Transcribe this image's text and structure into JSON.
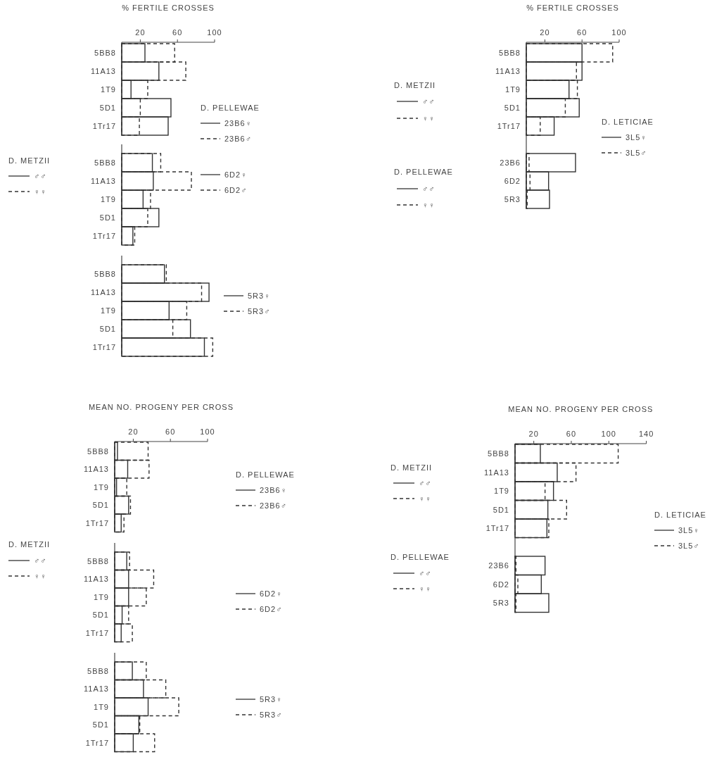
{
  "chart_data": [
    {
      "type": "bar",
      "orientation": "horizontal",
      "xlabel": "% FERTILE CROSSES",
      "categories": [
        "5BB8",
        "11A13",
        "1T9",
        "5D1",
        "1Tr17"
      ],
      "xlim": [
        0,
        100
      ],
      "xticks": [
        20,
        60,
        100
      ],
      "legend": "right",
      "legend_title": "D. PELLEWAE",
      "series": [
        {
          "name": "23B6♀",
          "color": "#333333",
          "line_style": "solid",
          "values": [
            25,
            40,
            10,
            53,
            50
          ]
        },
        {
          "name": "23B6♂",
          "color": "#333333",
          "line_style": "dashed",
          "values": [
            57,
            69,
            28,
            20,
            19
          ]
        }
      ]
    },
    {
      "type": "bar",
      "orientation": "horizontal",
      "categories": [
        "5BB8",
        "11A13",
        "1T9",
        "5D1",
        "1Tr17"
      ],
      "xlim": [
        0,
        100
      ],
      "tick_labels": "y",
      "legend": "right",
      "annotations": [
        "D. METZII",
        "♂♂",
        "♀♀"
      ],
      "series": [
        {
          "name": "6D2♀",
          "color": "#333333",
          "line_style": "solid",
          "values": [
            33,
            34,
            23,
            40,
            12
          ]
        },
        {
          "name": "6D2♂",
          "color": "#333333",
          "line_style": "dashed",
          "values": [
            42,
            75,
            31,
            28,
            14
          ]
        }
      ]
    },
    {
      "type": "bar",
      "orientation": "horizontal",
      "categories": [
        "5BB8",
        "11A13",
        "1T9",
        "5D1",
        "1Tr17"
      ],
      "xlim": [
        0,
        100
      ],
      "tick_labels": "y",
      "legend": "right",
      "series": [
        {
          "name": "5R3♀",
          "color": "#333333",
          "line_style": "solid",
          "values": [
            46,
            94,
            51,
            74,
            89
          ]
        },
        {
          "name": "5R3♂",
          "color": "#333333",
          "line_style": "dashed",
          "values": [
            48,
            86,
            70,
            55,
            98
          ]
        }
      ]
    },
    {
      "type": "bar",
      "orientation": "horizontal",
      "xlabel": "% FERTILE CROSSES",
      "categories": [
        "5BB8",
        "11A13",
        "1T9",
        "5D1",
        "1Tr17",
        null,
        "23B6",
        "6D2",
        "5R3"
      ],
      "xlim": [
        0,
        100
      ],
      "xticks": [
        20,
        60,
        100
      ],
      "legend": "right",
      "legend_title": "D. LETICIAE",
      "annotations": [
        "D. METZII",
        "♂♂",
        "♀♀",
        "D. PELLEWAE",
        "♂♂",
        "♀♀"
      ],
      "series": [
        {
          "name": "3L5♀",
          "color": "#333333",
          "line_style": "solid",
          "values": [
            60,
            60,
            46,
            57,
            30,
            null,
            53,
            24,
            25
          ]
        },
        {
          "name": "3L5♂",
          "color": "#333333",
          "line_style": "dashed",
          "values": [
            93,
            54,
            55,
            42,
            15,
            null,
            3,
            4,
            1
          ]
        }
      ]
    },
    {
      "type": "bar",
      "orientation": "horizontal",
      "xlabel": "MEAN NO. PROGENY PER CROSS",
      "categories": [
        "5BB8",
        "11A13",
        "1T9",
        "5D1",
        "1Tr17"
      ],
      "xlim": [
        0,
        100
      ],
      "xticks": [
        20,
        60,
        100
      ],
      "legend": "right",
      "legend_title": "D. PELLEWAE",
      "series": [
        {
          "name": "23B6♀",
          "color": "#333333",
          "line_style": "solid",
          "values": [
            3,
            14,
            2,
            15,
            7
          ]
        },
        {
          "name": "23B6♂",
          "color": "#333333",
          "line_style": "dashed",
          "values": [
            36,
            37,
            13,
            17,
            10
          ]
        }
      ]
    },
    {
      "type": "bar",
      "orientation": "horizontal",
      "categories": [
        "5BB8",
        "11A13",
        "1T9",
        "5D1",
        "1Tr17"
      ],
      "xlim": [
        0,
        100
      ],
      "tick_labels": "y",
      "legend": "right",
      "annotations": [
        "D. METZII",
        "♂♂",
        "♀♀"
      ],
      "series": [
        {
          "name": "6D2♀",
          "color": "#333333",
          "line_style": "solid",
          "values": [
            13,
            15,
            15,
            8,
            7
          ]
        },
        {
          "name": "6D2♂",
          "color": "#333333",
          "line_style": "dashed",
          "values": [
            16,
            42,
            34,
            15,
            19
          ]
        }
      ]
    },
    {
      "type": "bar",
      "orientation": "horizontal",
      "categories": [
        "5BB8",
        "11A13",
        "1T9",
        "5D1",
        "1Tr17"
      ],
      "xlim": [
        0,
        100
      ],
      "tick_labels": "y",
      "legend": "right",
      "series": [
        {
          "name": "5R3♀",
          "color": "#333333",
          "line_style": "solid",
          "values": [
            19,
            31,
            36,
            26,
            20
          ]
        },
        {
          "name": "5R3♂",
          "color": "#333333",
          "line_style": "dashed",
          "values": [
            34,
            55,
            69,
            27,
            43
          ]
        }
      ]
    },
    {
      "type": "bar",
      "orientation": "horizontal",
      "xlabel": "MEAN NO. PROGENY PER CROSS",
      "categories": [
        "5BB8",
        "11A13",
        "1T9",
        "5D1",
        "1Tr17",
        null,
        "23B6",
        "6D2",
        "5R3"
      ],
      "xlim": [
        0,
        140
      ],
      "xticks": [
        20,
        60,
        100,
        140
      ],
      "legend": "right",
      "legend_title": "D. LETICIAE",
      "annotations": [
        "D. METZII",
        "♂♂",
        "♀♀",
        "D. PELLEWAE",
        "♂♂",
        "♀♀"
      ],
      "series": [
        {
          "name": "3L5♀",
          "color": "#333333",
          "line_style": "solid",
          "values": [
            27,
            45,
            41,
            35,
            34,
            null,
            32,
            28,
            36
          ]
        },
        {
          "name": "3L5♂",
          "color": "#333333",
          "line_style": "dashed",
          "values": [
            110,
            65,
            32,
            55,
            36,
            null,
            1,
            3,
            1
          ]
        }
      ]
    }
  ]
}
